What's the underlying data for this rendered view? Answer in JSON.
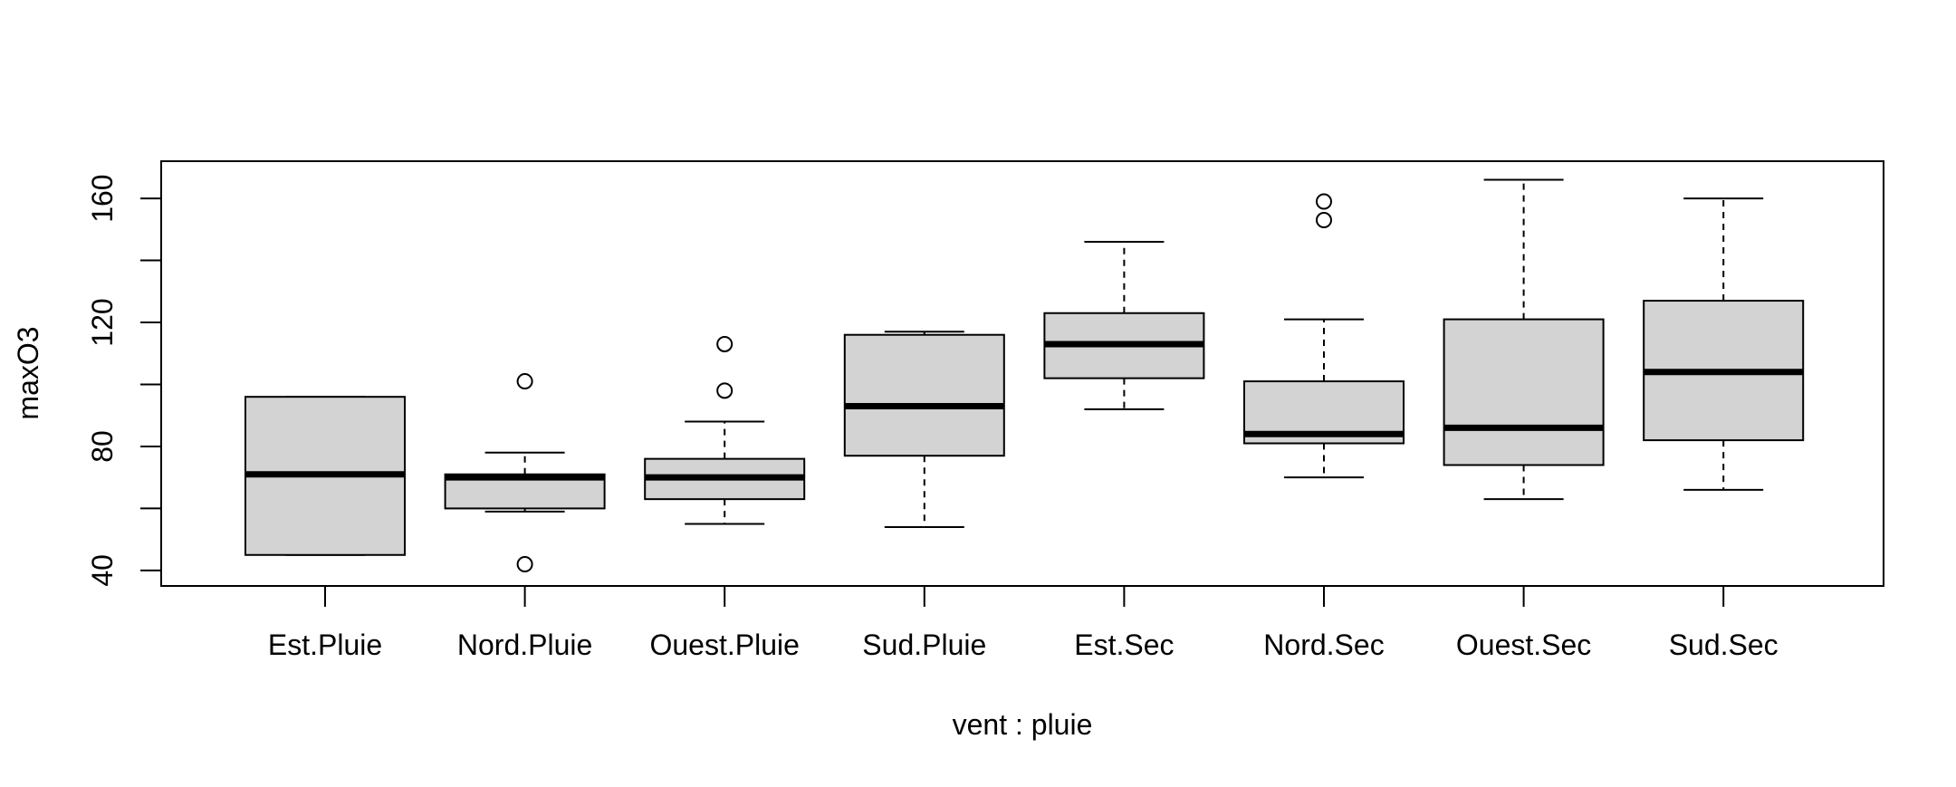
{
  "chart_data": {
    "type": "boxplot",
    "title": "",
    "xlabel": "vent : pluie",
    "ylabel": "maxO3",
    "ylim": [
      35,
      172
    ],
    "yticks": [
      40,
      80,
      120,
      160
    ],
    "y_minor_ticks": [
      60,
      100,
      140
    ],
    "grid": false,
    "colors": {
      "box_fill": "#d3d3d3",
      "line": "#000000",
      "background": "#ffffff"
    },
    "categories": [
      "Est.Pluie",
      "Nord.Pluie",
      "Ouest.Pluie",
      "Sud.Pluie",
      "Est.Sec",
      "Nord.Sec",
      "Ouest.Sec",
      "Sud.Sec"
    ],
    "boxes": [
      {
        "category": "Est.Pluie",
        "min": 45,
        "q1": 45,
        "median": 71,
        "q3": 96,
        "max": 96,
        "outliers": []
      },
      {
        "category": "Nord.Pluie",
        "min": 59,
        "q1": 60,
        "median": 70,
        "q3": 71,
        "max": 78,
        "outliers": [
          42,
          101
        ]
      },
      {
        "category": "Ouest.Pluie",
        "min": 55,
        "q1": 63,
        "median": 70,
        "q3": 76,
        "max": 88,
        "outliers": [
          98,
          113
        ]
      },
      {
        "category": "Sud.Pluie",
        "min": 54,
        "q1": 77,
        "median": 93,
        "q3": 116,
        "max": 117,
        "outliers": []
      },
      {
        "category": "Est.Sec",
        "min": 92,
        "q1": 102,
        "median": 113,
        "q3": 123,
        "max": 146,
        "outliers": []
      },
      {
        "category": "Nord.Sec",
        "min": 70,
        "q1": 81,
        "median": 84,
        "q3": 101,
        "max": 121,
        "outliers": [
          153,
          159
        ]
      },
      {
        "category": "Ouest.Sec",
        "min": 63,
        "q1": 74,
        "median": 86,
        "q3": 121,
        "max": 166,
        "outliers": []
      },
      {
        "category": "Sud.Sec",
        "min": 66,
        "q1": 82,
        "median": 104,
        "q3": 127,
        "max": 160,
        "outliers": []
      }
    ]
  }
}
